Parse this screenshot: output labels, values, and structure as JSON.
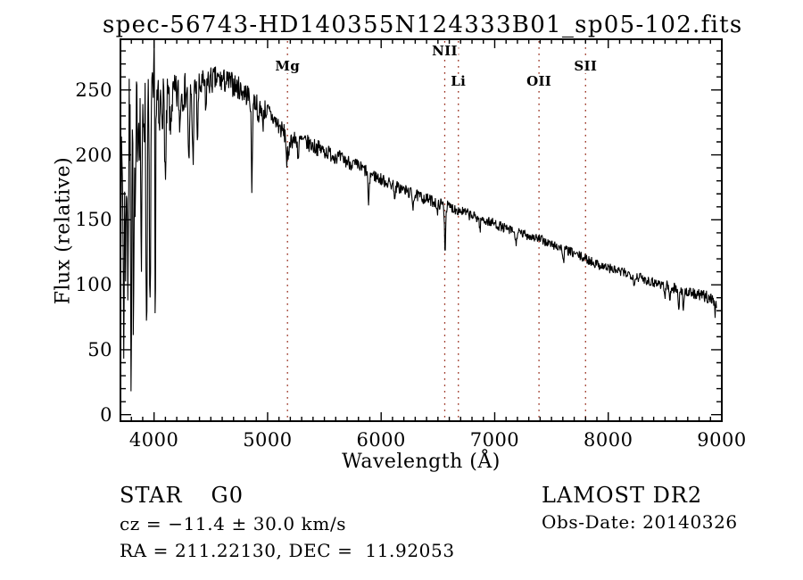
{
  "title": "spec-56743-HD140355N124333B01_sp05-102.fits",
  "chart_data": {
    "type": "line",
    "title": "spec-56743-HD140355N124333B01_sp05-102.fits",
    "xlabel": "Wavelength (Å)",
    "ylabel": "Flux (relative)",
    "x_ticks": [
      4000,
      5000,
      6000,
      7000,
      8000,
      9000
    ],
    "y_ticks": [
      0,
      50,
      100,
      150,
      200,
      250
    ],
    "x_minor_step": 100,
    "y_minor_step": 10,
    "xlim": [
      3704,
      9000
    ],
    "ylim": [
      -5,
      289
    ],
    "grid": false,
    "legend": "none",
    "line_color": "#000000",
    "marker_color": "#9b3423",
    "line_markers": [
      {
        "label": "Mg",
        "wavelength": 5175,
        "row": 1
      },
      {
        "label": "NII",
        "wavelength": 6560,
        "row": 0
      },
      {
        "label": "Li",
        "wavelength": 6680,
        "row": 2
      },
      {
        "label": "OII",
        "wavelength": 7390,
        "row": 2
      },
      {
        "label": "SII",
        "wavelength": 7800,
        "row": 1
      }
    ],
    "continuum": [
      [
        3705,
        162
      ],
      [
        3720,
        185
      ],
      [
        3740,
        200
      ],
      [
        3760,
        210
      ],
      [
        3780,
        218
      ],
      [
        3800,
        222
      ],
      [
        3825,
        226
      ],
      [
        3850,
        229
      ],
      [
        3875,
        231
      ],
      [
        3900,
        233
      ],
      [
        3925,
        235
      ],
      [
        3950,
        237
      ],
      [
        3975,
        238
      ],
      [
        4000,
        239
      ],
      [
        4050,
        240
      ],
      [
        4100,
        241
      ],
      [
        4150,
        243
      ],
      [
        4200,
        246
      ],
      [
        4250,
        248
      ],
      [
        4300,
        250
      ],
      [
        4350,
        251
      ],
      [
        4400,
        252
      ],
      [
        4450,
        255
      ],
      [
        4500,
        257
      ],
      [
        4550,
        258
      ],
      [
        4600,
        257
      ],
      [
        4650,
        256
      ],
      [
        4700,
        254
      ],
      [
        4750,
        251
      ],
      [
        4800,
        248
      ],
      [
        4850,
        244
      ],
      [
        4900,
        240
      ],
      [
        4950,
        237
      ],
      [
        5000,
        233
      ],
      [
        5050,
        228
      ],
      [
        5100,
        222
      ],
      [
        5150,
        216
      ],
      [
        5200,
        212
      ],
      [
        5300,
        211
      ],
      [
        5400,
        207
      ],
      [
        5500,
        203
      ],
      [
        5600,
        199
      ],
      [
        5700,
        195
      ],
      [
        5800,
        191
      ],
      [
        5900,
        186
      ],
      [
        6000,
        181
      ],
      [
        6100,
        177
      ],
      [
        6200,
        173
      ],
      [
        6300,
        169
      ],
      [
        6400,
        166
      ],
      [
        6500,
        163
      ],
      [
        6600,
        160
      ],
      [
        6700,
        157
      ],
      [
        6800,
        153
      ],
      [
        6900,
        150
      ],
      [
        7000,
        147
      ],
      [
        7100,
        143
      ],
      [
        7200,
        140
      ],
      [
        7300,
        138
      ],
      [
        7400,
        135
      ],
      [
        7500,
        131
      ],
      [
        7600,
        128
      ],
      [
        7700,
        124
      ],
      [
        7800,
        120
      ],
      [
        7900,
        116
      ],
      [
        8000,
        113
      ],
      [
        8100,
        110
      ],
      [
        8200,
        108
      ],
      [
        8300,
        105
      ],
      [
        8400,
        102
      ],
      [
        8500,
        100
      ],
      [
        8600,
        97
      ],
      [
        8700,
        94
      ],
      [
        8800,
        92
      ],
      [
        8900,
        90
      ],
      [
        8955,
        88
      ]
    ],
    "absorption_features": [
      [
        3734,
        130,
        5
      ],
      [
        3752,
        90,
        4
      ],
      [
        3770,
        110,
        4
      ],
      [
        3798,
        178,
        4
      ],
      [
        3820,
        170,
        4
      ],
      [
        3835,
        100,
        4
      ],
      [
        3889,
        120,
        5
      ],
      [
        3934,
        175,
        5
      ],
      [
        3964,
        175,
        5
      ],
      [
        4003,
        -47,
        3
      ],
      [
        4010,
        194,
        3
      ],
      [
        4045,
        30,
        4
      ],
      [
        4101,
        64,
        6
      ],
      [
        4144,
        28,
        5
      ],
      [
        4226,
        30,
        4
      ],
      [
        4307,
        62,
        6
      ],
      [
        4342,
        54,
        6
      ],
      [
        4383,
        40,
        5
      ],
      [
        4455,
        25,
        4
      ],
      [
        4861,
        68,
        5
      ],
      [
        4920,
        22,
        4
      ],
      [
        4957,
        18,
        4
      ],
      [
        5169,
        20,
        5
      ],
      [
        5183,
        18,
        5
      ],
      [
        5270,
        15,
        5
      ],
      [
        5890,
        25,
        6
      ],
      [
        6122,
        10,
        5
      ],
      [
        6280,
        9,
        5
      ],
      [
        6495,
        10,
        5
      ],
      [
        6563,
        34,
        5
      ],
      [
        6870,
        8,
        5
      ],
      [
        7186,
        9,
        6
      ],
      [
        7605,
        10,
        6
      ],
      [
        8230,
        8,
        5
      ],
      [
        8498,
        10,
        5
      ],
      [
        8542,
        12,
        5
      ],
      [
        8620,
        20,
        4
      ],
      [
        8662,
        12,
        5
      ],
      [
        8940,
        10,
        6
      ]
    ],
    "noise_profile": [
      [
        3705,
        40
      ],
      [
        3740,
        48
      ],
      [
        3780,
        45
      ],
      [
        3850,
        38
      ],
      [
        3950,
        30
      ],
      [
        4050,
        22
      ],
      [
        4150,
        18
      ],
      [
        4250,
        15
      ],
      [
        4400,
        12
      ],
      [
        4600,
        10
      ],
      [
        4900,
        9
      ],
      [
        5200,
        7
      ],
      [
        5600,
        6
      ],
      [
        6000,
        5
      ],
      [
        6563,
        4.5
      ],
      [
        7000,
        4
      ],
      [
        7600,
        3.8
      ],
      [
        8200,
        4
      ],
      [
        8700,
        4.5
      ],
      [
        8955,
        5
      ]
    ],
    "sample_step": 4,
    "seed": 7
  },
  "annotations": {
    "object_type": "STAR",
    "subclass": "G0",
    "survey": "LAMOST DR2",
    "cz_line": "cz = −11.4 ± 30.0 km/s",
    "obs_date_line": "Obs-Date: 20140326",
    "ra_dec_line": "RA = 211.22130, DEC =  11.92053"
  }
}
